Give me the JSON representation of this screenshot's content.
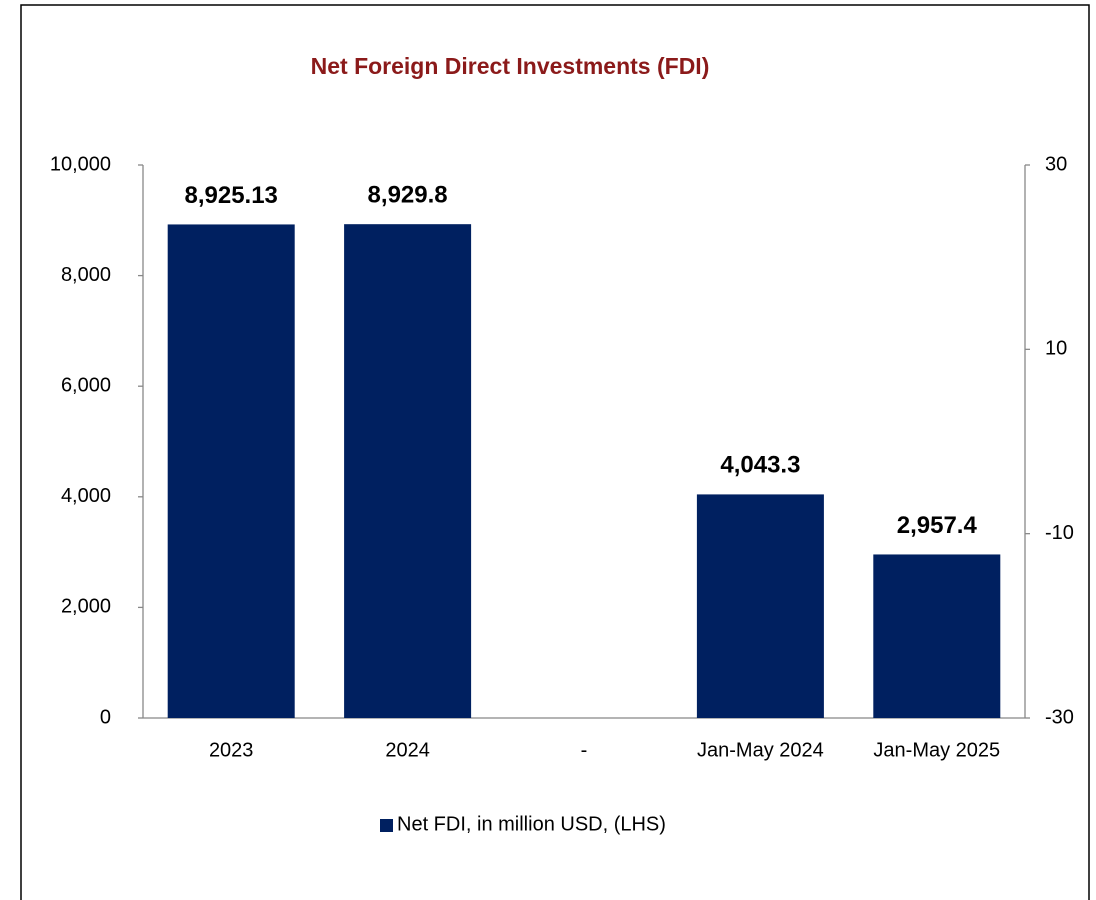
{
  "chart_data": {
    "type": "bar",
    "title": "Net Foreign Direct Investments (FDI)",
    "categories": [
      "2023",
      "2024",
      "-",
      "Jan-May 2024",
      "Jan-May 2025"
    ],
    "series": [
      {
        "name": "Net FDI, in million USD, (LHS)",
        "color": "#002060",
        "values": [
          8925.13,
          8929.8,
          null,
          4043.3,
          2957.4
        ],
        "value_labels": [
          "8,925.13",
          "8,929.8",
          null,
          "4,043.3",
          "2,957.4"
        ]
      }
    ],
    "ylim": [
      0,
      10000
    ],
    "yticks": [
      0,
      {
        "value": 2000,
        "label": "2,000"
      },
      {
        "value": 4000,
        "label": "4,000"
      },
      {
        "value": 6000,
        "label": "6,000"
      },
      {
        "value": 8000,
        "label": "8,000"
      },
      {
        "value": 10000,
        "label": "10,000"
      }
    ],
    "y2lim": [
      -30,
      30
    ],
    "y2ticks": [
      -30,
      -10,
      10,
      30
    ],
    "grid": false,
    "legend": "bottom"
  }
}
